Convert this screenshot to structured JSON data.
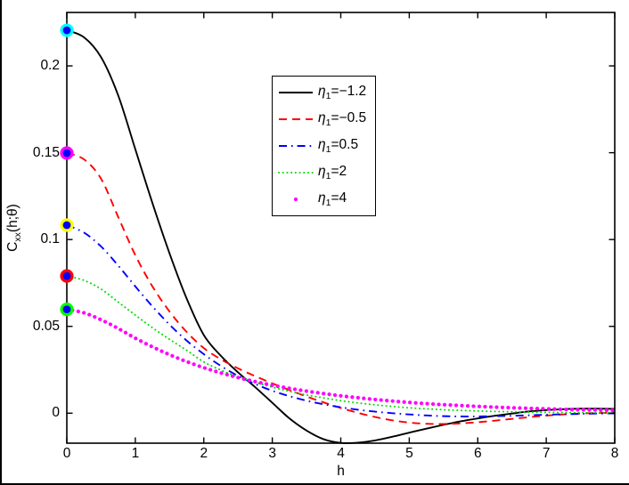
{
  "axes": {
    "xlabel": "h",
    "ylabel_main": "C",
    "ylabel_sub": "xx",
    "ylabel_args": "(h;θ)"
  },
  "chart_data": {
    "type": "line",
    "title": "",
    "xlabel": "h",
    "ylabel": "C_xx(h;θ)",
    "xlim": [
      0,
      8
    ],
    "ylim": [
      -0.01727,
      0.23077
    ],
    "grid": false,
    "legend_position": "upper center-left inside",
    "xticks": [
      0,
      1,
      2,
      3,
      4,
      5,
      6,
      7,
      8
    ],
    "xtick_labels": [
      "0",
      "1",
      "2",
      "3",
      "4",
      "5",
      "6",
      "7",
      "8"
    ],
    "yticks": [
      0,
      0.05,
      0.1,
      0.15,
      0.2
    ],
    "ytick_labels": [
      "0",
      "0.05",
      "0.1",
      "0.15",
      "0.2"
    ],
    "x": [
      0,
      0.25,
      0.5,
      0.75,
      1,
      1.25,
      1.5,
      1.75,
      2,
      2.25,
      2.5,
      2.75,
      3,
      3.25,
      3.5,
      3.75,
      4,
      4.25,
      4.5,
      4.75,
      5,
      5.25,
      5.5,
      5.75,
      6,
      6.25,
      6.5,
      6.75,
      7,
      7.25,
      7.5,
      7.75,
      8
    ],
    "series": [
      {
        "name": "eta1 = -1.2",
        "color": "#000000",
        "style": "solid",
        "line_width": 1.9,
        "marker_value_at_0": 0.22,
        "marker_edge": "#00FFFF",
        "marker_face": "#0000FF",
        "values": [
          0.2205,
          0.2165,
          0.205,
          0.183,
          0.152,
          0.121,
          0.092,
          0.066,
          0.045,
          0.033,
          0.0235,
          0.015,
          0.006,
          -0.003,
          -0.01,
          -0.015,
          -0.0171,
          -0.017,
          -0.0157,
          -0.0136,
          -0.0112,
          -0.0089,
          -0.0067,
          -0.0047,
          -0.003,
          -0.0015,
          -0.0002,
          0.001,
          0.0018,
          0.0023,
          0.0026,
          0.0026,
          0.0025
        ]
      },
      {
        "name": "eta1 = -0.5",
        "color": "#FF0000",
        "style": "dashed",
        "line_width": 1.9,
        "marker_value_at_0": 0.15,
        "marker_edge": "#FF00FF",
        "marker_face": "#0000FF",
        "values": [
          0.1498,
          0.1462,
          0.135,
          0.113,
          0.091,
          0.073,
          0.0585,
          0.0468,
          0.0375,
          0.031,
          0.0258,
          0.0213,
          0.0172,
          0.0133,
          0.0096,
          0.0062,
          0.003,
          0.0002,
          -0.0022,
          -0.0041,
          -0.0054,
          -0.0061,
          -0.0062,
          -0.0059,
          -0.0052,
          -0.0043,
          -0.0033,
          -0.0023,
          -0.0014,
          -0.0007,
          -0.0002,
          0.0001,
          0.0003
        ]
      },
      {
        "name": "eta1 = 0.5",
        "color": "#0000FF",
        "style": "dashdot",
        "line_width": 1.9,
        "marker_value_at_0": 0.11,
        "marker_edge": "#FFFF00",
        "marker_face": "#0000FF",
        "values": [
          0.1083,
          0.104,
          0.096,
          0.085,
          0.073,
          0.0615,
          0.051,
          0.0418,
          0.034,
          0.0272,
          0.0215,
          0.0168,
          0.0129,
          0.0098,
          0.0072,
          0.0051,
          0.0034,
          0.002,
          0.0009,
          0,
          -0.0007,
          -0.0013,
          -0.0017,
          -0.0019,
          -0.0019,
          -0.0017,
          -0.0015,
          -0.0012,
          -0.0009,
          -0.0006,
          -0.0004,
          -0.0002,
          -0.0001
        ]
      },
      {
        "name": "eta1 = 2",
        "color": "#00DD00",
        "style": "dotted",
        "line_width": 2.0,
        "marker_value_at_0": 0.08,
        "marker_edge": "#FF0000",
        "marker_face": "#0000FF",
        "values": [
          0.079,
          0.0765,
          0.0715,
          0.064,
          0.0565,
          0.0492,
          0.0425,
          0.0362,
          0.0295,
          0.0248,
          0.021,
          0.0178,
          0.015,
          0.0126,
          0.0105,
          0.0088,
          0.0072,
          0.0059,
          0.0048,
          0.0039,
          0.0031,
          0.0025,
          0.002,
          0.0016,
          0.0013,
          0.001,
          0.0008,
          0.0006,
          0.0005,
          0.0004,
          0.0003,
          0.0002,
          0.0002
        ]
      },
      {
        "name": "eta1 = 4",
        "color": "#FF00FF",
        "style": "dotmarker",
        "line_width": 4.2,
        "marker_value_at_0": 0.06,
        "marker_edge": "#00FF00",
        "marker_face": "#0000FF",
        "values": [
          0.0598,
          0.0578,
          0.0538,
          0.0488,
          0.0432,
          0.0382,
          0.0337,
          0.0297,
          0.0262,
          0.0232,
          0.0205,
          0.0182,
          0.0161,
          0.0143,
          0.0127,
          0.0113,
          0.01,
          0.0089,
          0.0079,
          0.007,
          0.0062,
          0.0055,
          0.0049,
          0.0044,
          0.0039,
          0.0035,
          0.0031,
          0.0028,
          0.0025,
          0.0022,
          0.002,
          0.0018,
          0.0016
        ]
      }
    ]
  },
  "legend": {
    "entries": [
      {
        "symbol": "η",
        "sub": "1",
        "value": "=−1.2"
      },
      {
        "symbol": "η",
        "sub": "1",
        "value": "=−0.5"
      },
      {
        "symbol": "η",
        "sub": "1",
        "value": "=0.5"
      },
      {
        "symbol": "η",
        "sub": "1",
        "value": "=2"
      },
      {
        "symbol": "η",
        "sub": "1",
        "value": "=4"
      }
    ]
  }
}
